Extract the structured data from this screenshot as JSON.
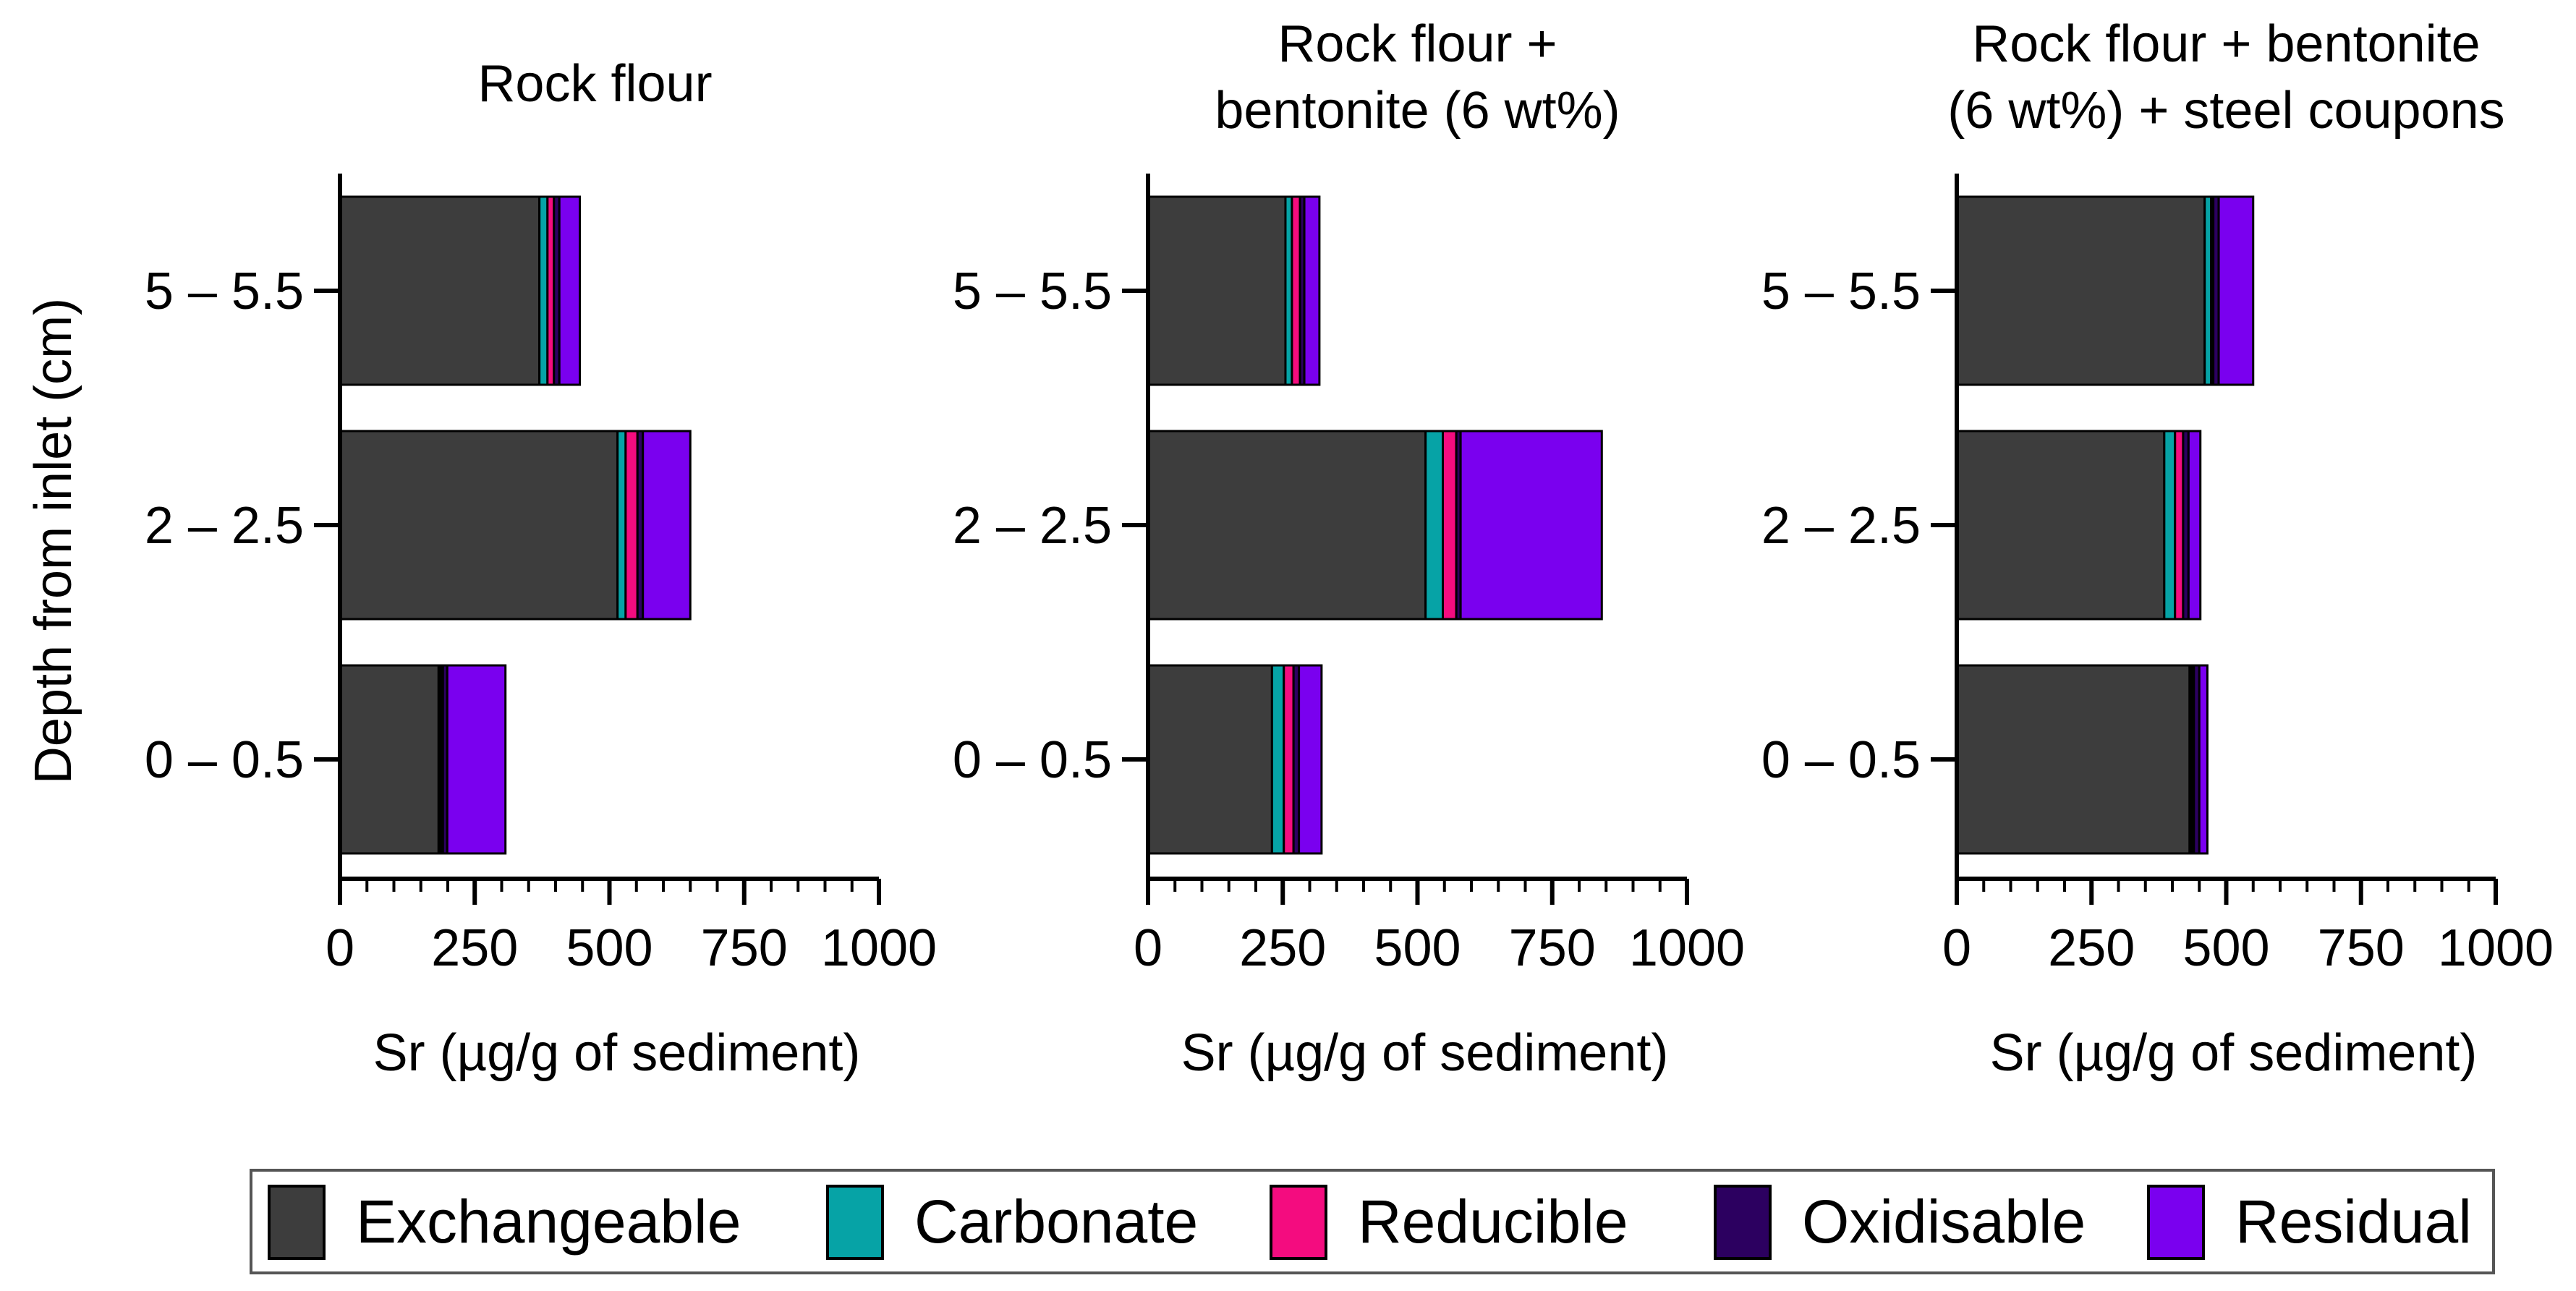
{
  "legend": [
    {
      "name": "Exchangeable",
      "color": "#3d3d3d"
    },
    {
      "name": "Carbonate",
      "color": "#06a3a6"
    },
    {
      "name": "Reducible",
      "color": "#f40c7f"
    },
    {
      "name": "Oxidisable",
      "color": "#2c0060"
    },
    {
      "name": "Residual",
      "color": "#7a00ef"
    }
  ],
  "y_axis_label": "Depth from inlet (cm)",
  "chart_data": [
    {
      "type": "bar",
      "orientation": "horizontal",
      "stacked": true,
      "title": "Rock flour",
      "title_lines": [
        "Rock flour"
      ],
      "xlabel": "Sr (µg/g of sediment)",
      "ylabel": "Depth from inlet (cm)",
      "xlim": [
        0,
        1000
      ],
      "xticks": [
        "0",
        "250",
        "500",
        "750",
        "1000"
      ],
      "categories": [
        "5 – 5.5",
        "2 – 2.5",
        "0 – 0.5"
      ],
      "series": [
        {
          "name": "Exchangeable",
          "values": [
            370,
            515,
            183
          ]
        },
        {
          "name": "Carbonate",
          "values": [
            15,
            15,
            4
          ]
        },
        {
          "name": "Reducible",
          "values": [
            12,
            22,
            4
          ]
        },
        {
          "name": "Oxidisable",
          "values": [
            10,
            10,
            8
          ]
        },
        {
          "name": "Residual",
          "values": [
            38,
            88,
            108
          ]
        }
      ]
    },
    {
      "type": "bar",
      "orientation": "horizontal",
      "stacked": true,
      "title": "Rock flour + bentonite (6 wt%)",
      "title_lines": [
        "Rock flour +",
        "bentonite (6 wt%)"
      ],
      "xlabel": "Sr (µg/g of sediment)",
      "ylabel": "",
      "xlim": [
        0,
        1000
      ],
      "xticks": [
        "0",
        "250",
        "500",
        "750",
        "1000"
      ],
      "categories": [
        "5 – 5.5",
        "2 – 2.5",
        "0 – 0.5"
      ],
      "series": [
        {
          "name": "Exchangeable",
          "values": [
            255,
            515,
            230
          ]
        },
        {
          "name": "Carbonate",
          "values": [
            12,
            32,
            22
          ]
        },
        {
          "name": "Reducible",
          "values": [
            15,
            25,
            18
          ]
        },
        {
          "name": "Oxidisable",
          "values": [
            8,
            8,
            10
          ]
        },
        {
          "name": "Residual",
          "values": [
            28,
            262,
            42
          ]
        }
      ]
    },
    {
      "type": "bar",
      "orientation": "horizontal",
      "stacked": true,
      "title": "Rock flour + bentonite (6 wt%) + steel coupons",
      "title_lines": [
        "Rock flour + bentonite",
        "(6 wt%) + steel coupons"
      ],
      "xlabel": "Sr (µg/g of sediment)",
      "ylabel": "",
      "xlim": [
        0,
        1000
      ],
      "xticks": [
        "0",
        "250",
        "500",
        "750",
        "1000"
      ],
      "categories": [
        "5 – 5.5",
        "2 – 2.5",
        "0 – 0.5"
      ],
      "series": [
        {
          "name": "Exchangeable",
          "values": [
            460,
            385,
            432
          ]
        },
        {
          "name": "Carbonate",
          "values": [
            12,
            20,
            4
          ]
        },
        {
          "name": "Reducible",
          "values": [
            4,
            15,
            4
          ]
        },
        {
          "name": "Oxidisable",
          "values": [
            10,
            10,
            10
          ]
        },
        {
          "name": "Residual",
          "values": [
            64,
            22,
            15
          ]
        }
      ]
    }
  ]
}
